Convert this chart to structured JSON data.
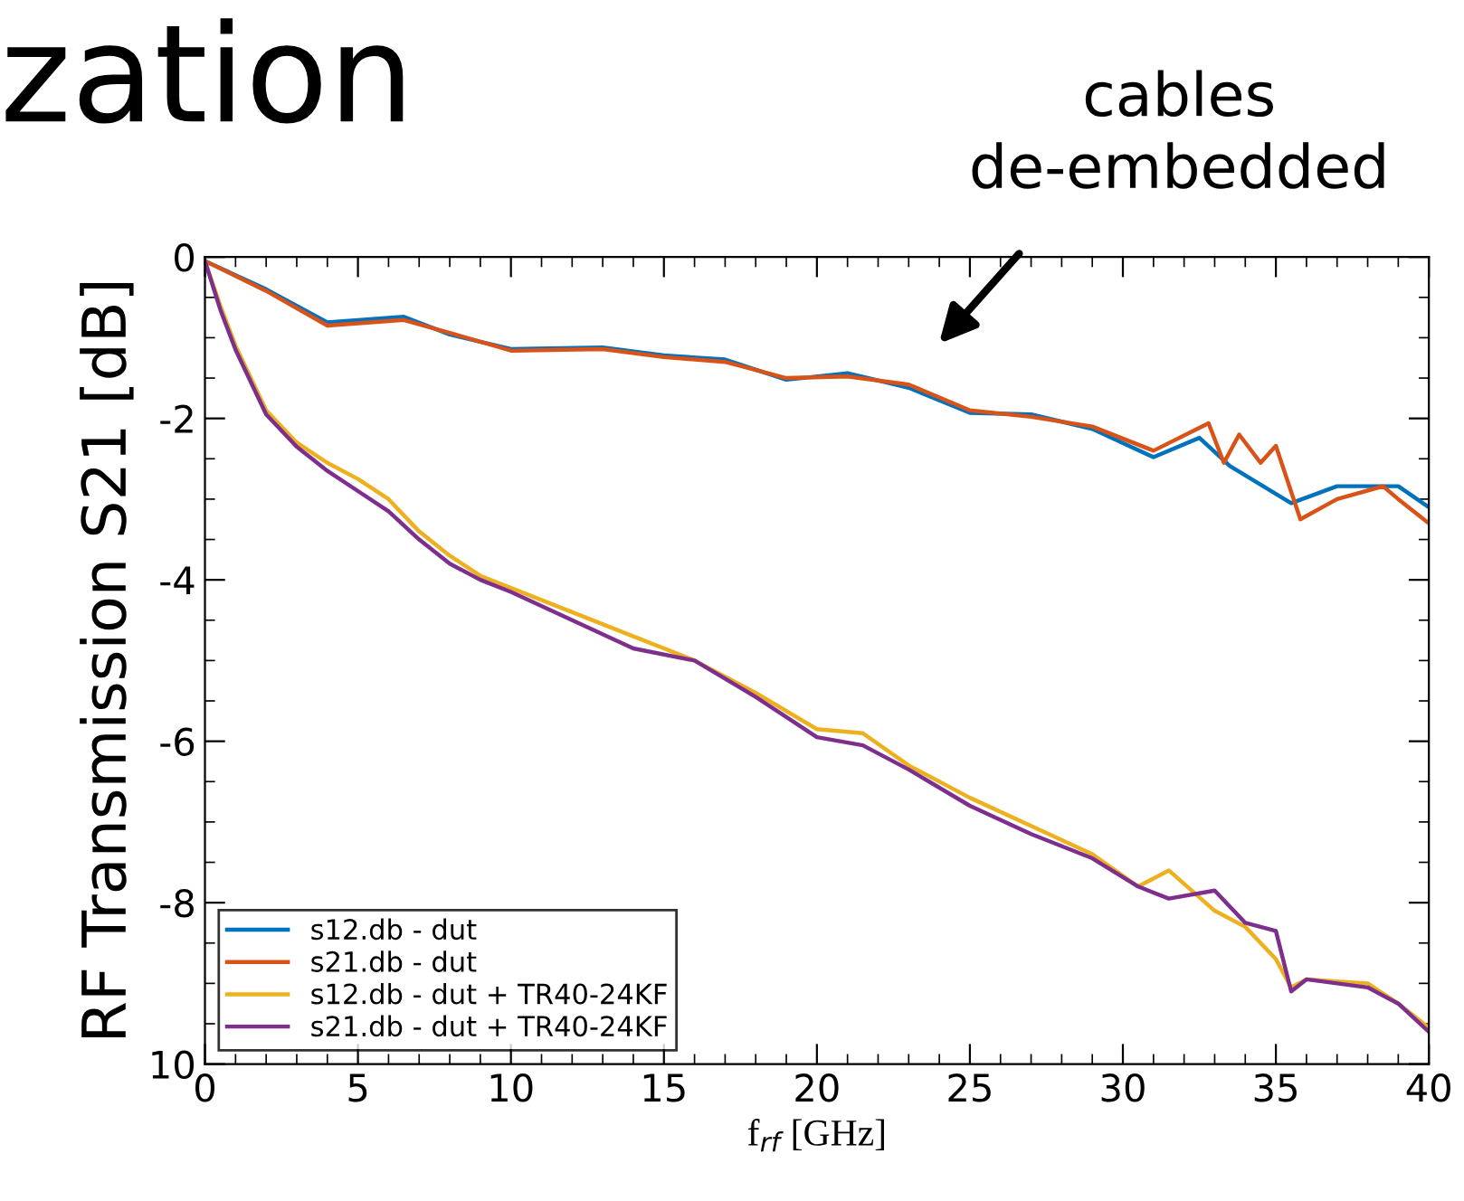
{
  "chart_data": {
    "type": "line",
    "title": "zation",
    "xlabel": "f$_{rf}$ [GHz]",
    "ylabel": "RF Transmission S21 [dB]",
    "annotations": [
      "cables\nde-embedded"
    ],
    "xlim": [
      0,
      40
    ],
    "ylim": [
      -10,
      0
    ],
    "xticks": [
      0,
      5,
      10,
      15,
      20,
      25,
      30,
      35,
      40
    ],
    "yticks": [
      {
        "value": -10,
        "label": "10"
      },
      -8,
      -6,
      -4,
      -2,
      0
    ],
    "grid": false,
    "legend": "bottom left",
    "line_style": "solid",
    "marker": "none",
    "series": [
      {
        "name": "s12.db - dut",
        "color": "#0072bd",
        "x": [
          0,
          2,
          4,
          6.5,
          8,
          10,
          13,
          15,
          17,
          19,
          21,
          23,
          25,
          27,
          29,
          31,
          32.5,
          33.5,
          35.5,
          37,
          39,
          40
        ],
        "values": [
          -0.05,
          -0.4,
          -0.81,
          -0.74,
          -0.96,
          -1.14,
          -1.12,
          -1.22,
          -1.27,
          -1.52,
          -1.44,
          -1.62,
          -1.93,
          -1.95,
          -2.13,
          -2.48,
          -2.24,
          -2.59,
          -3.05,
          -2.84,
          -2.84,
          -3.1
        ]
      },
      {
        "name": "s21.db - dut",
        "color": "#d95319",
        "x": [
          0,
          2,
          4,
          6.5,
          8,
          10,
          13,
          15,
          17,
          19,
          21,
          23,
          25,
          27,
          29,
          31,
          32.8,
          33.3,
          33.8,
          34.5,
          35,
          35.8,
          37,
          38.5,
          39,
          40
        ],
        "values": [
          -0.05,
          -0.42,
          -0.85,
          -0.78,
          -0.94,
          -1.16,
          -1.14,
          -1.24,
          -1.3,
          -1.5,
          -1.48,
          -1.58,
          -1.9,
          -1.98,
          -2.1,
          -2.4,
          -2.06,
          -2.55,
          -2.2,
          -2.55,
          -2.34,
          -3.25,
          -3.0,
          -2.84,
          -3.0,
          -3.3
        ]
      },
      {
        "name": "s12.db - dut + TR40-24KF",
        "color": "#edb120",
        "x": [
          0,
          0.5,
          1,
          2,
          3,
          4,
          5,
          6,
          7,
          8,
          9,
          10,
          12,
          14,
          16,
          18,
          20,
          21.5,
          23,
          25,
          27,
          29,
          30.5,
          31.5,
          33,
          34,
          35,
          35.5,
          36,
          38,
          39,
          40
        ],
        "values": [
          -0.05,
          -0.6,
          -1.1,
          -1.9,
          -2.3,
          -2.55,
          -2.75,
          -3.0,
          -3.4,
          -3.7,
          -3.95,
          -4.1,
          -4.4,
          -4.7,
          -5.0,
          -5.4,
          -5.85,
          -5.9,
          -6.3,
          -6.7,
          -7.05,
          -7.4,
          -7.8,
          -7.6,
          -8.1,
          -8.3,
          -8.7,
          -9.05,
          -8.95,
          -9.0,
          -9.25,
          -9.55
        ]
      },
      {
        "name": "s21.db - dut + TR40-24KF",
        "color": "#7e2f8e",
        "x": [
          0,
          0.5,
          1,
          2,
          3,
          4,
          5,
          6,
          7,
          8,
          9,
          10,
          12,
          14,
          16,
          18,
          20,
          21.5,
          23,
          25,
          27,
          29,
          30.5,
          31.5,
          33,
          34,
          35,
          35.5,
          36,
          38,
          39,
          40
        ],
        "values": [
          -0.05,
          -0.65,
          -1.15,
          -1.95,
          -2.35,
          -2.65,
          -2.9,
          -3.15,
          -3.5,
          -3.8,
          -4.0,
          -4.15,
          -4.5,
          -4.85,
          -5.0,
          -5.45,
          -5.95,
          -6.05,
          -6.35,
          -6.8,
          -7.15,
          -7.45,
          -7.8,
          -7.95,
          -7.85,
          -8.25,
          -8.35,
          -9.1,
          -8.95,
          -9.05,
          -9.25,
          -9.6
        ]
      }
    ]
  }
}
